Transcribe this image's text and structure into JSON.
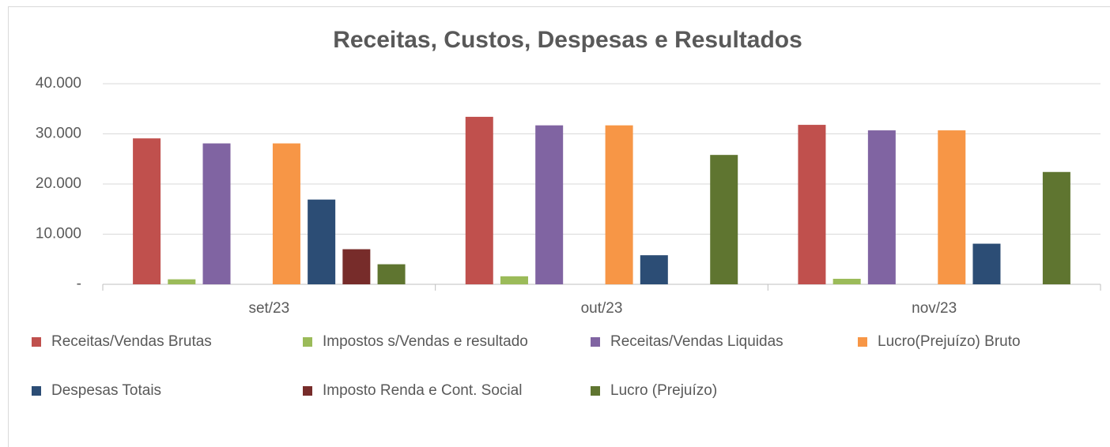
{
  "chart_data": {
    "type": "bar",
    "title": "Receitas, Custos, Despesas e Resultados",
    "categories": [
      "set/23",
      "out/23",
      "nov/23"
    ],
    "series": [
      {
        "name": "Receitas/Vendas Brutas",
        "color": "#c0504d",
        "values": [
          29100,
          33400,
          31800
        ]
      },
      {
        "name": "Impostos s/Vendas e resultado",
        "color": "#9bbb59",
        "values": [
          1000,
          1600,
          1100
        ]
      },
      {
        "name": "Receitas/Vendas Liquidas",
        "color": "#8064a2",
        "values": [
          28100,
          31700,
          30700
        ]
      },
      {
        "name": "Lucro(Prejuízo) Bruto",
        "color": "#f79646",
        "values": [
          28100,
          31700,
          30700
        ]
      },
      {
        "name": "Despesas Totais",
        "color": "#2c4d75",
        "values": [
          16900,
          5800,
          8100
        ]
      },
      {
        "name": "Imposto Renda e Cont. Social",
        "color": "#772c2a",
        "values": [
          7000,
          0,
          0
        ]
      },
      {
        "name": "Lucro (Prejuízo)",
        "color": "#5f7530",
        "values": [
          4000,
          25800,
          22400
        ]
      }
    ],
    "ylim": [
      0,
      40000
    ],
    "yticks": [
      {
        "value": 0,
        "label": "-"
      },
      {
        "value": 10000,
        "label": "10.000"
      },
      {
        "value": 20000,
        "label": "20.000"
      },
      {
        "value": 30000,
        "label": "30.000"
      },
      {
        "value": 40000,
        "label": "40.000"
      }
    ],
    "grid": true,
    "legend": "bottom"
  }
}
